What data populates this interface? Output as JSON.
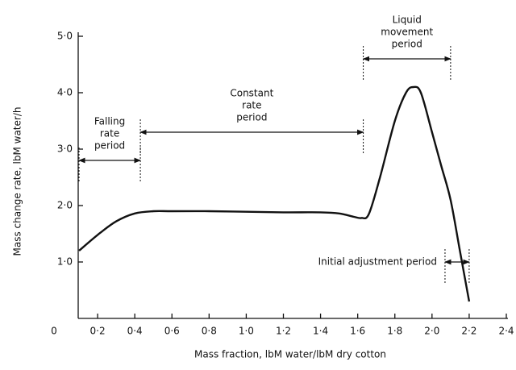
{
  "chart_data": {
    "type": "line",
    "xlabel": "Mass fraction,  lbM water/lbM dry cotton",
    "ylabel": "Mass change rate,  lbM water/h",
    "xlim": [
      0,
      2.4
    ],
    "ylim": [
      0,
      5.0
    ],
    "xticks": [
      0,
      {
        "value": 0.2,
        "label": "0·2"
      },
      {
        "value": 0.4,
        "label": "0·4"
      },
      {
        "value": 0.6,
        "label": "0·6"
      },
      {
        "value": 0.8,
        "label": "0·8"
      },
      {
        "value": 1.0,
        "label": "1·0"
      },
      {
        "value": 1.2,
        "label": "1·2"
      },
      {
        "value": 1.4,
        "label": "1·4"
      },
      {
        "value": 1.6,
        "label": "1·6"
      },
      {
        "value": 1.8,
        "label": "1·8"
      },
      {
        "value": 2.0,
        "label": "2·0"
      },
      {
        "value": 2.2,
        "label": "2·2"
      },
      {
        "value": 2.4,
        "label": "2·4"
      }
    ],
    "yticks": [
      {
        "value": 1.0,
        "label": "1·0"
      },
      {
        "value": 2.0,
        "label": "2·0"
      },
      {
        "value": 3.0,
        "label": "3·0"
      },
      {
        "value": 4.0,
        "label": "4·0"
      },
      {
        "value": 5.0,
        "label": "5·0"
      }
    ],
    "color": "#111111",
    "x": [
      0.1,
      0.2,
      0.3,
      0.4,
      0.5,
      0.6,
      0.8,
      1.0,
      1.2,
      1.4,
      1.5,
      1.58,
      1.62,
      1.66,
      1.72,
      1.8,
      1.86,
      1.9,
      1.94,
      2.0,
      2.05,
      2.1,
      2.15,
      2.2
    ],
    "values": [
      1.2,
      1.48,
      1.72,
      1.86,
      1.9,
      1.9,
      1.9,
      1.89,
      1.88,
      1.88,
      1.86,
      1.8,
      1.78,
      1.85,
      2.5,
      3.5,
      4.0,
      4.1,
      4.0,
      3.3,
      2.7,
      2.1,
      1.2,
      0.3
    ],
    "annotations": [
      {
        "lines": [
          "Falling",
          "rate",
          "period"
        ],
        "x": [
          0.1,
          0.43
        ],
        "y": 2.8
      },
      {
        "lines": [
          "Constant",
          "rate",
          "period"
        ],
        "x": [
          0.43,
          1.63
        ],
        "y": 3.3
      },
      {
        "lines": [
          "Liquid",
          "movement",
          "period"
        ],
        "x": [
          1.63,
          2.1
        ],
        "y": 4.6
      },
      {
        "lines": [
          "Initial adjustment period"
        ],
        "x": [
          2.07,
          2.2
        ],
        "y": 1.0
      }
    ]
  }
}
